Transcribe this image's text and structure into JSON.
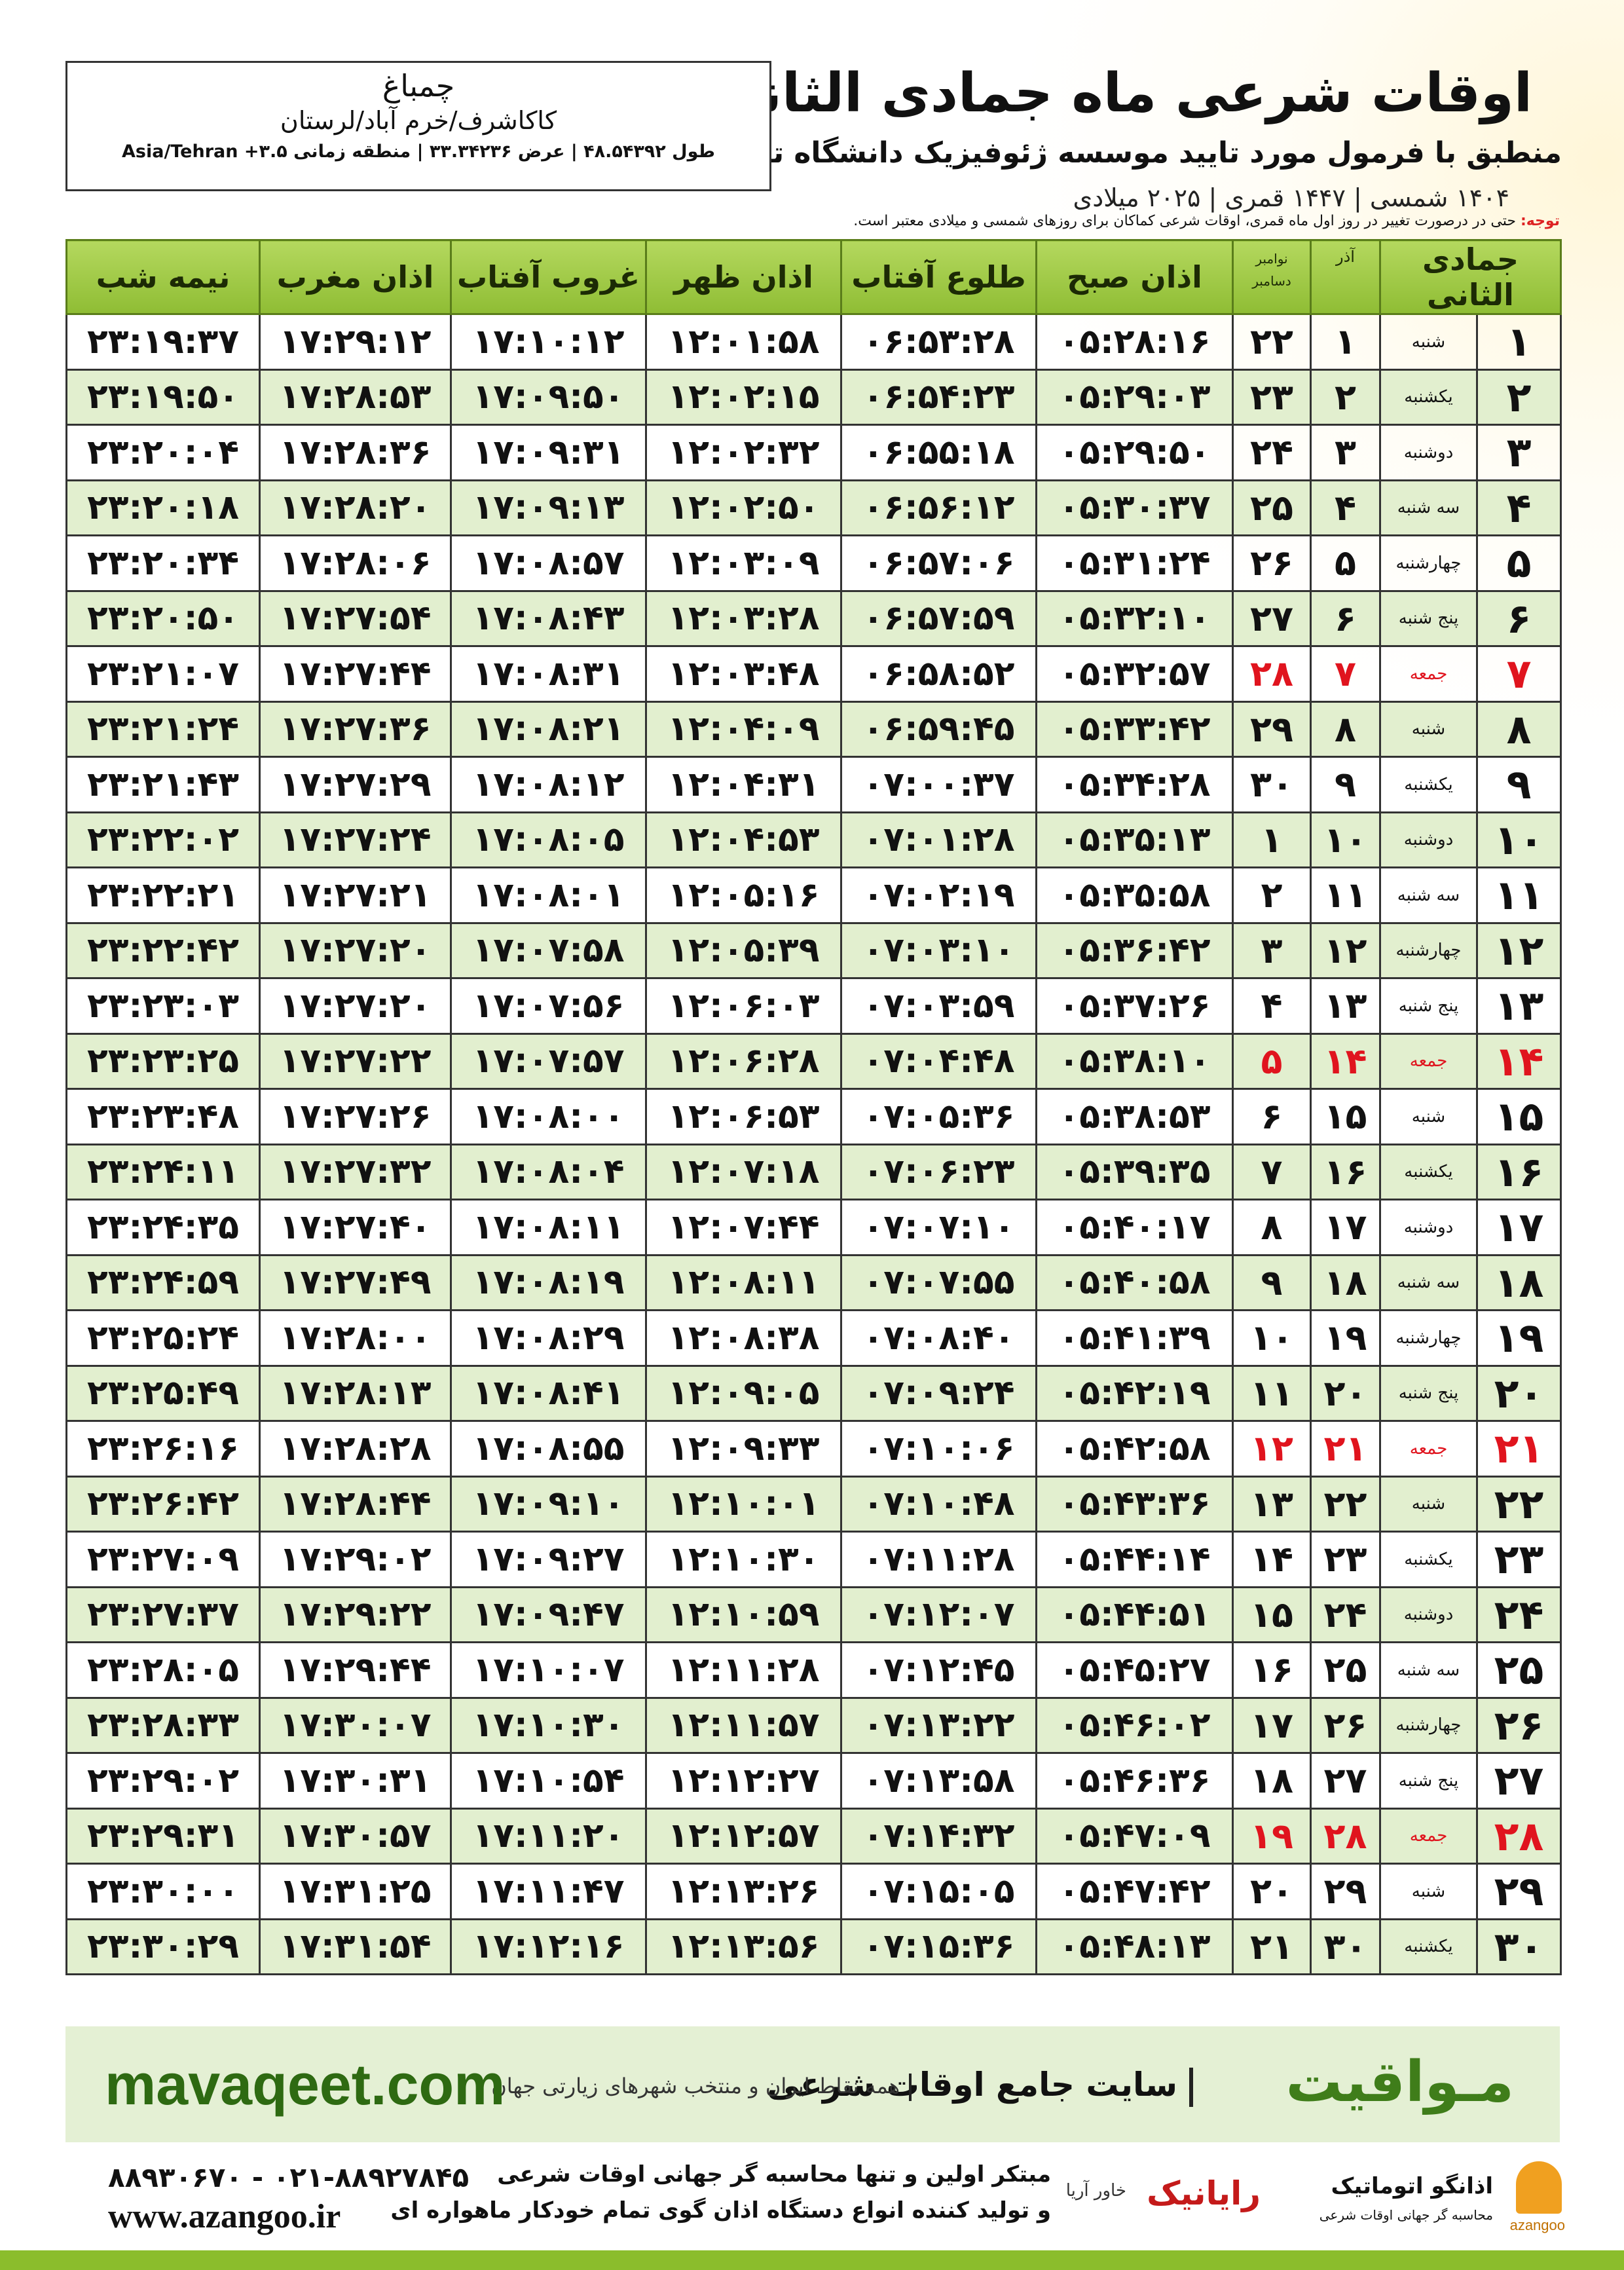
{
  "header": {
    "title": "اوقات شرعی ماه جمادی الثانی",
    "subtitle": "منطبق با فرمول مورد تایید موسسه ژئوفیزیک دانشگاه تهران",
    "dates": "۱۴۰۴ شمسی | ۱۴۴۷ قمری | ۲۰۲۵ میلادی"
  },
  "location": {
    "name": "چمباغ",
    "region": "کاکاشرف/خرم آباد/لرستان",
    "coords": "طول ۴۸.۵۴۳۹۲ | عرض ۳۳.۳۴۲۳۶ | منطقه زمانی ۳.۵+ Asia/Tehran"
  },
  "note": {
    "label": "توجه:",
    "text": "حتی در درصورت تغییر در روز اول ماه قمری، اوقات شرعی کماکان برای روزهای شمسی و میلادی معتبر است."
  },
  "table": {
    "columns": [
      "جمادی الثانی",
      "آذر",
      [
        "نوامبر",
        "دسامبر"
      ],
      "اذان صبح",
      "طلوع آفتاب",
      "اذان ظهر",
      "غروب آفتاب",
      "اذان مغرب",
      "نیمه شب"
    ],
    "rows": [
      [
        "۱",
        "شنبه",
        "۱",
        "۲۲",
        "۰۵:۲۸:۱۶",
        "۰۶:۵۳:۲۸",
        "۱۲:۰۱:۵۸",
        "۱۷:۱۰:۱۲",
        "۱۷:۲۹:۱۲",
        "۲۳:۱۹:۳۷"
      ],
      [
        "۲",
        "یکشنبه",
        "۲",
        "۲۳",
        "۰۵:۲۹:۰۳",
        "۰۶:۵۴:۲۳",
        "۱۲:۰۲:۱۵",
        "۱۷:۰۹:۵۰",
        "۱۷:۲۸:۵۳",
        "۲۳:۱۹:۵۰"
      ],
      [
        "۳",
        "دوشنبه",
        "۳",
        "۲۴",
        "۰۵:۲۹:۵۰",
        "۰۶:۵۵:۱۸",
        "۱۲:۰۲:۳۲",
        "۱۷:۰۹:۳۱",
        "۱۷:۲۸:۳۶",
        "۲۳:۲۰:۰۴"
      ],
      [
        "۴",
        "سه شنبه",
        "۴",
        "۲۵",
        "۰۵:۳۰:۳۷",
        "۰۶:۵۶:۱۲",
        "۱۲:۰۲:۵۰",
        "۱۷:۰۹:۱۳",
        "۱۷:۲۸:۲۰",
        "۲۳:۲۰:۱۸"
      ],
      [
        "۵",
        "چهارشنبه",
        "۵",
        "۲۶",
        "۰۵:۳۱:۲۴",
        "۰۶:۵۷:۰۶",
        "۱۲:۰۳:۰۹",
        "۱۷:۰۸:۵۷",
        "۱۷:۲۸:۰۶",
        "۲۳:۲۰:۳۴"
      ],
      [
        "۶",
        "پنج شنبه",
        "۶",
        "۲۷",
        "۰۵:۳۲:۱۰",
        "۰۶:۵۷:۵۹",
        "۱۲:۰۳:۲۸",
        "۱۷:۰۸:۴۳",
        "۱۷:۲۷:۵۴",
        "۲۳:۲۰:۵۰"
      ],
      [
        "۷",
        "جمعه",
        "۷",
        "۲۸",
        "۰۵:۳۲:۵۷",
        "۰۶:۵۸:۵۲",
        "۱۲:۰۳:۴۸",
        "۱۷:۰۸:۳۱",
        "۱۷:۲۷:۴۴",
        "۲۳:۲۱:۰۷"
      ],
      [
        "۸",
        "شنبه",
        "۸",
        "۲۹",
        "۰۵:۳۳:۴۲",
        "۰۶:۵۹:۴۵",
        "۱۲:۰۴:۰۹",
        "۱۷:۰۸:۲۱",
        "۱۷:۲۷:۳۶",
        "۲۳:۲۱:۲۴"
      ],
      [
        "۹",
        "یکشنبه",
        "۹",
        "۳۰",
        "۰۵:۳۴:۲۸",
        "۰۷:۰۰:۳۷",
        "۱۲:۰۴:۳۱",
        "۱۷:۰۸:۱۲",
        "۱۷:۲۷:۲۹",
        "۲۳:۲۱:۴۳"
      ],
      [
        "۱۰",
        "دوشنبه",
        "۱۰",
        "۱",
        "۰۵:۳۵:۱۳",
        "۰۷:۰۱:۲۸",
        "۱۲:۰۴:۵۳",
        "۱۷:۰۸:۰۵",
        "۱۷:۲۷:۲۴",
        "۲۳:۲۲:۰۲"
      ],
      [
        "۱۱",
        "سه شنبه",
        "۱۱",
        "۲",
        "۰۵:۳۵:۵۸",
        "۰۷:۰۲:۱۹",
        "۱۲:۰۵:۱۶",
        "۱۷:۰۸:۰۱",
        "۱۷:۲۷:۲۱",
        "۲۳:۲۲:۲۱"
      ],
      [
        "۱۲",
        "چهارشنبه",
        "۱۲",
        "۳",
        "۰۵:۳۶:۴۲",
        "۰۷:۰۳:۱۰",
        "۱۲:۰۵:۳۹",
        "۱۷:۰۷:۵۸",
        "۱۷:۲۷:۲۰",
        "۲۳:۲۲:۴۲"
      ],
      [
        "۱۳",
        "پنج شنبه",
        "۱۳",
        "۴",
        "۰۵:۳۷:۲۶",
        "۰۷:۰۳:۵۹",
        "۱۲:۰۶:۰۳",
        "۱۷:۰۷:۵۶",
        "۱۷:۲۷:۲۰",
        "۲۳:۲۳:۰۳"
      ],
      [
        "۱۴",
        "جمعه",
        "۱۴",
        "۵",
        "۰۵:۳۸:۱۰",
        "۰۷:۰۴:۴۸",
        "۱۲:۰۶:۲۸",
        "۱۷:۰۷:۵۷",
        "۱۷:۲۷:۲۲",
        "۲۳:۲۳:۲۵"
      ],
      [
        "۱۵",
        "شنبه",
        "۱۵",
        "۶",
        "۰۵:۳۸:۵۳",
        "۰۷:۰۵:۳۶",
        "۱۲:۰۶:۵۳",
        "۱۷:۰۸:۰۰",
        "۱۷:۲۷:۲۶",
        "۲۳:۲۳:۴۸"
      ],
      [
        "۱۶",
        "یکشنبه",
        "۱۶",
        "۷",
        "۰۵:۳۹:۳۵",
        "۰۷:۰۶:۲۳",
        "۱۲:۰۷:۱۸",
        "۱۷:۰۸:۰۴",
        "۱۷:۲۷:۳۲",
        "۲۳:۲۴:۱۱"
      ],
      [
        "۱۷",
        "دوشنبه",
        "۱۷",
        "۸",
        "۰۵:۴۰:۱۷",
        "۰۷:۰۷:۱۰",
        "۱۲:۰۷:۴۴",
        "۱۷:۰۸:۱۱",
        "۱۷:۲۷:۴۰",
        "۲۳:۲۴:۳۵"
      ],
      [
        "۱۸",
        "سه شنبه",
        "۱۸",
        "۹",
        "۰۵:۴۰:۵۸",
        "۰۷:۰۷:۵۵",
        "۱۲:۰۸:۱۱",
        "۱۷:۰۸:۱۹",
        "۱۷:۲۷:۴۹",
        "۲۳:۲۴:۵۹"
      ],
      [
        "۱۹",
        "چهارشنبه",
        "۱۹",
        "۱۰",
        "۰۵:۴۱:۳۹",
        "۰۷:۰۸:۴۰",
        "۱۲:۰۸:۳۸",
        "۱۷:۰۸:۲۹",
        "۱۷:۲۸:۰۰",
        "۲۳:۲۵:۲۴"
      ],
      [
        "۲۰",
        "پنج شنبه",
        "۲۰",
        "۱۱",
        "۰۵:۴۲:۱۹",
        "۰۷:۰۹:۲۴",
        "۱۲:۰۹:۰۵",
        "۱۷:۰۸:۴۱",
        "۱۷:۲۸:۱۳",
        "۲۳:۲۵:۴۹"
      ],
      [
        "۲۱",
        "جمعه",
        "۲۱",
        "۱۲",
        "۰۵:۴۲:۵۸",
        "۰۷:۱۰:۰۶",
        "۱۲:۰۹:۳۳",
        "۱۷:۰۸:۵۵",
        "۱۷:۲۸:۲۸",
        "۲۳:۲۶:۱۶"
      ],
      [
        "۲۲",
        "شنبه",
        "۲۲",
        "۱۳",
        "۰۵:۴۳:۳۶",
        "۰۷:۱۰:۴۸",
        "۱۲:۱۰:۰۱",
        "۱۷:۰۹:۱۰",
        "۱۷:۲۸:۴۴",
        "۲۳:۲۶:۴۲"
      ],
      [
        "۲۳",
        "یکشنبه",
        "۲۳",
        "۱۴",
        "۰۵:۴۴:۱۴",
        "۰۷:۱۱:۲۸",
        "۱۲:۱۰:۳۰",
        "۱۷:۰۹:۲۷",
        "۱۷:۲۹:۰۲",
        "۲۳:۲۷:۰۹"
      ],
      [
        "۲۴",
        "دوشنبه",
        "۲۴",
        "۱۵",
        "۰۵:۴۴:۵۱",
        "۰۷:۱۲:۰۷",
        "۱۲:۱۰:۵۹",
        "۱۷:۰۹:۴۷",
        "۱۷:۲۹:۲۲",
        "۲۳:۲۷:۳۷"
      ],
      [
        "۲۵",
        "سه شنبه",
        "۲۵",
        "۱۶",
        "۰۵:۴۵:۲۷",
        "۰۷:۱۲:۴۵",
        "۱۲:۱۱:۲۸",
        "۱۷:۱۰:۰۷",
        "۱۷:۲۹:۴۴",
        "۲۳:۲۸:۰۵"
      ],
      [
        "۲۶",
        "چهارشنبه",
        "۲۶",
        "۱۷",
        "۰۵:۴۶:۰۲",
        "۰۷:۱۳:۲۲",
        "۱۲:۱۱:۵۷",
        "۱۷:۱۰:۳۰",
        "۱۷:۳۰:۰۷",
        "۲۳:۲۸:۳۳"
      ],
      [
        "۲۷",
        "پنج شنبه",
        "۲۷",
        "۱۸",
        "۰۵:۴۶:۳۶",
        "۰۷:۱۳:۵۸",
        "۱۲:۱۲:۲۷",
        "۱۷:۱۰:۵۴",
        "۱۷:۳۰:۳۱",
        "۲۳:۲۹:۰۲"
      ],
      [
        "۲۸",
        "جمعه",
        "۲۸",
        "۱۹",
        "۰۵:۴۷:۰۹",
        "۰۷:۱۴:۳۲",
        "۱۲:۱۲:۵۷",
        "۱۷:۱۱:۲۰",
        "۱۷:۳۰:۵۷",
        "۲۳:۲۹:۳۱"
      ],
      [
        "۲۹",
        "شنبه",
        "۲۹",
        "۲۰",
        "۰۵:۴۷:۴۲",
        "۰۷:۱۵:۰۵",
        "۱۲:۱۳:۲۶",
        "۱۷:۱۱:۴۷",
        "۱۷:۳۱:۲۵",
        "۲۳:۳۰:۰۰"
      ],
      [
        "۳۰",
        "یکشنبه",
        "۳۰",
        "۲۱",
        "۰۵:۴۸:۱۳",
        "۰۷:۱۵:۳۶",
        "۱۲:۱۳:۵۶",
        "۱۷:۱۲:۱۶",
        "۱۷:۳۱:۵۴",
        "۲۳:۳۰:۲۹"
      ]
    ]
  },
  "banner": {
    "logo": "مـواقیت",
    "slogan": "سایت جامع اوقات شرعی",
    "tagline": "همه نقاط ایران و منتخب شهرهای زیارتی جهان",
    "url": "mavaqeet.com"
  },
  "footer": {
    "phones": "۰۲۱-۸۸۹۲۷۸۴۵ - ۸۸۹۳۰۶۷۰",
    "website": "www.azangoo.ir",
    "line1": "مبتکر اولین و تنها محاسبه گر جهانی اوقات شرعی",
    "line2": "و تولید کننده انواع دستگاه اذان گوی تمام خودکار ماهواره ای",
    "brand1": "رایانیک",
    "brand1_sub": "خاور آریا",
    "brand2": "اذانگو اتوماتیک",
    "brand2_sub": "محاسبه گر جهانی اوقات شرعی",
    "brand2_latin": "azangoo"
  }
}
